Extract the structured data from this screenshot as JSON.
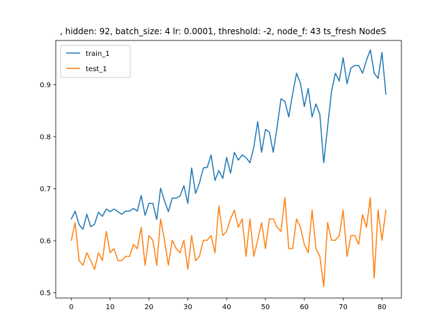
{
  "chart_data": {
    "type": "line",
    "title": ", hidden: 92, batch_size: 4 lr: 0.0001, threshold: -2, node_f: 43 ts_fresh NodeS",
    "xlabel": "",
    "ylabel": "",
    "xlim": [
      -4,
      85
    ],
    "ylim": [
      0.49,
      0.985
    ],
    "xticks": [
      0,
      10,
      20,
      30,
      40,
      50,
      60,
      70,
      80
    ],
    "yticks": [
      0.5,
      0.6,
      0.7,
      0.8,
      0.9
    ],
    "ytick_labels": [
      "0.5",
      "0.6",
      "0.7",
      "0.8",
      "0.9"
    ],
    "grid": false,
    "legend_position": "upper-left",
    "series": [
      {
        "name": "train_1",
        "color": "#1f77b4",
        "x": [
          0,
          1,
          2,
          3,
          4,
          5,
          6,
          7,
          8,
          9,
          10,
          11,
          12,
          13,
          14,
          15,
          16,
          17,
          18,
          19,
          20,
          21,
          22,
          23,
          24,
          25,
          26,
          27,
          28,
          29,
          30,
          31,
          32,
          33,
          34,
          35,
          36,
          37,
          38,
          39,
          40,
          41,
          42,
          43,
          44,
          45,
          46,
          47,
          48,
          49,
          50,
          51,
          52,
          53,
          54,
          55,
          56,
          57,
          58,
          59,
          60,
          61,
          62,
          63,
          64,
          65,
          66,
          67,
          68,
          69,
          70,
          71,
          72,
          73,
          74,
          75,
          76,
          77,
          78,
          79,
          80,
          81
        ],
        "values": [
          0.642,
          0.657,
          0.631,
          0.622,
          0.651,
          0.627,
          0.632,
          0.655,
          0.647,
          0.661,
          0.656,
          0.661,
          0.656,
          0.651,
          0.657,
          0.657,
          0.662,
          0.657,
          0.687,
          0.649,
          0.672,
          0.672,
          0.641,
          0.701,
          0.677,
          0.656,
          0.682,
          0.682,
          0.686,
          0.706,
          0.672,
          0.74,
          0.691,
          0.711,
          0.74,
          0.741,
          0.765,
          0.716,
          0.735,
          0.72,
          0.76,
          0.73,
          0.77,
          0.755,
          0.765,
          0.76,
          0.75,
          0.78,
          0.829,
          0.77,
          0.814,
          0.809,
          0.77,
          0.819,
          0.873,
          0.868,
          0.838,
          0.883,
          0.922,
          0.903,
          0.858,
          0.893,
          0.838,
          0.863,
          0.843,
          0.75,
          0.819,
          0.887,
          0.922,
          0.907,
          0.952,
          0.902,
          0.932,
          0.937,
          0.937,
          0.922,
          0.947,
          0.967,
          0.922,
          0.912,
          0.962,
          0.882
        ]
      },
      {
        "name": "test_1",
        "color": "#ff7f0e",
        "x": [
          0,
          1,
          2,
          3,
          4,
          5,
          6,
          7,
          8,
          9,
          10,
          11,
          12,
          13,
          14,
          15,
          16,
          17,
          18,
          19,
          20,
          21,
          22,
          23,
          24,
          25,
          26,
          27,
          28,
          29,
          30,
          31,
          32,
          33,
          34,
          35,
          36,
          37,
          38,
          39,
          40,
          41,
          42,
          43,
          44,
          45,
          46,
          47,
          48,
          49,
          50,
          51,
          52,
          53,
          54,
          55,
          56,
          57,
          58,
          59,
          60,
          61,
          62,
          63,
          64,
          65,
          66,
          67,
          68,
          69,
          70,
          71,
          72,
          73,
          74,
          75,
          76,
          77,
          78,
          79,
          80,
          81
        ],
        "values": [
          0.601,
          0.635,
          0.562,
          0.553,
          0.577,
          0.562,
          0.545,
          0.577,
          0.562,
          0.618,
          0.577,
          0.585,
          0.562,
          0.562,
          0.57,
          0.57,
          0.593,
          0.585,
          0.626,
          0.553,
          0.61,
          0.601,
          0.553,
          0.642,
          0.601,
          0.553,
          0.601,
          0.585,
          0.577,
          0.601,
          0.545,
          0.61,
          0.562,
          0.57,
          0.601,
          0.601,
          0.61,
          0.577,
          0.667,
          0.61,
          0.618,
          0.642,
          0.659,
          0.626,
          0.642,
          0.57,
          0.642,
          0.57,
          0.601,
          0.635,
          0.585,
          0.642,
          0.642,
          0.626,
          0.618,
          0.683,
          0.585,
          0.585,
          0.642,
          0.626,
          0.593,
          0.577,
          0.659,
          0.585,
          0.57,
          0.512,
          0.635,
          0.601,
          0.601,
          0.61,
          0.659,
          0.57,
          0.61,
          0.61,
          0.593,
          0.65,
          0.626,
          0.683,
          0.528,
          0.659,
          0.601,
          0.659
        ]
      }
    ]
  }
}
